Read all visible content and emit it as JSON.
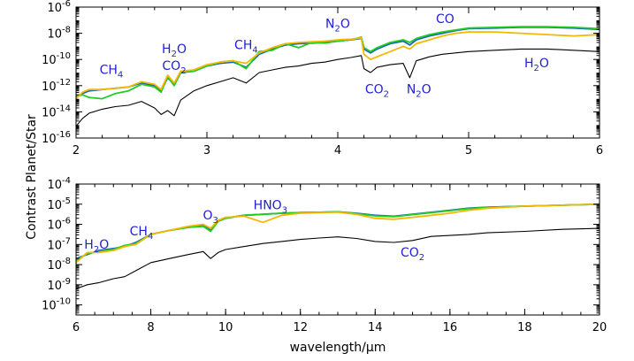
{
  "ylabel": "Contrast  Planet/Star",
  "colors": {
    "star_ref": "#000000",
    "series_a": "#1565c0",
    "series_b": "#22cc22",
    "series_c": "#f5b800",
    "annotation": "#1f1fd6"
  },
  "chart_data": [
    {
      "type": "line",
      "xlabel": "",
      "xlim": [
        2,
        6
      ],
      "xticks": [
        2,
        3,
        4,
        5,
        6
      ],
      "xtick_labels": [
        "2",
        "3",
        "4",
        "5",
        "6"
      ],
      "yscale": "log",
      "ylim_exp": [
        -16,
        -6
      ],
      "ytick_exps": [
        -16,
        -14,
        -12,
        -10,
        -8,
        -6
      ],
      "ytick_labels": [
        "10^-16",
        "10^-14",
        "10^-12",
        "10^-10",
        "10^-8",
        "10^-6"
      ],
      "series": [
        {
          "color": "#000000",
          "x": [
            2.0,
            2.05,
            2.1,
            2.2,
            2.3,
            2.4,
            2.5,
            2.6,
            2.65,
            2.7,
            2.75,
            2.8,
            2.9,
            3.0,
            3.1,
            3.2,
            3.3,
            3.4,
            3.5,
            3.6,
            3.7,
            3.8,
            3.9,
            4.0,
            4.1,
            4.18,
            4.2,
            4.25,
            4.3,
            4.4,
            4.5,
            4.55,
            4.6,
            4.7,
            4.8,
            4.9,
            5.0,
            5.2,
            5.4,
            5.6,
            5.8,
            6.0
          ],
          "log_y": [
            -15.1,
            -14.5,
            -14.1,
            -13.8,
            -13.6,
            -13.5,
            -13.2,
            -13.7,
            -14.2,
            -13.9,
            -14.3,
            -13.1,
            -12.4,
            -12.0,
            -11.7,
            -11.4,
            -11.8,
            -11.0,
            -10.8,
            -10.6,
            -10.5,
            -10.3,
            -10.2,
            -10.0,
            -9.85,
            -9.7,
            -10.7,
            -11.0,
            -10.6,
            -10.4,
            -10.3,
            -11.4,
            -10.1,
            -9.8,
            -9.6,
            -9.5,
            -9.4,
            -9.3,
            -9.2,
            -9.2,
            -9.3,
            -9.4
          ]
        },
        {
          "color": "#1565c0",
          "x": [
            2.0,
            2.05,
            2.1,
            2.2,
            2.3,
            2.4,
            2.5,
            2.6,
            2.65,
            2.7,
            2.75,
            2.8,
            2.9,
            3.0,
            3.1,
            3.2,
            3.3,
            3.4,
            3.5,
            3.6,
            3.7,
            3.8,
            3.9,
            4.0,
            4.1,
            4.18,
            4.2,
            4.25,
            4.3,
            4.4,
            4.5,
            4.55,
            4.6,
            4.7,
            4.8,
            4.9,
            5.0,
            5.2,
            5.4,
            5.6,
            5.8,
            6.0
          ],
          "log_y": [
            -12.9,
            -12.6,
            -12.4,
            -12.3,
            -12.2,
            -12.1,
            -11.8,
            -12.0,
            -12.4,
            -11.4,
            -11.9,
            -11.0,
            -10.9,
            -10.5,
            -10.3,
            -10.2,
            -10.6,
            -9.6,
            -9.2,
            -8.9,
            -8.8,
            -8.75,
            -8.7,
            -8.6,
            -8.5,
            -8.4,
            -9.2,
            -9.5,
            -9.2,
            -8.8,
            -8.6,
            -8.9,
            -8.5,
            -8.2,
            -8.0,
            -7.8,
            -7.65,
            -7.6,
            -7.55,
            -7.55,
            -7.6,
            -7.7
          ]
        },
        {
          "color": "#22cc22",
          "x": [
            2.0,
            2.05,
            2.1,
            2.2,
            2.3,
            2.4,
            2.5,
            2.6,
            2.65,
            2.7,
            2.75,
            2.8,
            2.9,
            3.0,
            3.1,
            3.2,
            3.3,
            3.4,
            3.5,
            3.6,
            3.7,
            3.8,
            3.9,
            4.0,
            4.1,
            4.18,
            4.2,
            4.25,
            4.3,
            4.4,
            4.5,
            4.55,
            4.6,
            4.7,
            4.8,
            4.9,
            5.0,
            5.2,
            5.4,
            5.6,
            5.8,
            6.0
          ],
          "log_y": [
            -12.8,
            -12.7,
            -12.9,
            -13.0,
            -12.6,
            -12.4,
            -11.9,
            -12.1,
            -12.5,
            -11.3,
            -12.0,
            -11.0,
            -10.9,
            -10.5,
            -10.2,
            -10.1,
            -10.7,
            -9.4,
            -9.3,
            -8.8,
            -9.1,
            -8.7,
            -8.75,
            -8.6,
            -8.5,
            -8.3,
            -9.1,
            -9.4,
            -9.1,
            -8.7,
            -8.5,
            -8.7,
            -8.4,
            -8.1,
            -7.9,
            -7.75,
            -7.6,
            -7.55,
            -7.5,
            -7.5,
            -7.55,
            -7.65
          ]
        },
        {
          "color": "#f5b800",
          "x": [
            2.0,
            2.05,
            2.1,
            2.2,
            2.3,
            2.4,
            2.5,
            2.6,
            2.65,
            2.7,
            2.75,
            2.8,
            2.9,
            3.0,
            3.1,
            3.2,
            3.3,
            3.4,
            3.5,
            3.6,
            3.7,
            3.8,
            3.9,
            4.0,
            4.1,
            4.18,
            4.2,
            4.25,
            4.3,
            4.4,
            4.5,
            4.55,
            4.6,
            4.7,
            4.8,
            4.9,
            5.0,
            5.2,
            5.4,
            5.6,
            5.8,
            6.0
          ],
          "log_y": [
            -13.0,
            -12.5,
            -12.3,
            -12.3,
            -12.2,
            -12.1,
            -11.7,
            -11.9,
            -12.3,
            -11.2,
            -11.8,
            -10.9,
            -10.8,
            -10.4,
            -10.2,
            -10.1,
            -10.3,
            -9.5,
            -9.1,
            -8.8,
            -8.7,
            -8.65,
            -8.6,
            -8.5,
            -8.45,
            -8.35,
            -9.6,
            -10.0,
            -9.8,
            -9.4,
            -9.0,
            -9.2,
            -8.8,
            -8.5,
            -8.2,
            -8.0,
            -7.9,
            -7.9,
            -8.0,
            -8.1,
            -8.2,
            -8.1
          ]
        }
      ],
      "annotations": [
        {
          "base": "CH",
          "sub": "4",
          "x": 2.27,
          "log_y": -11.1
        },
        {
          "base": "H",
          "sub": "2",
          "tail": "O",
          "x": 2.75,
          "log_y": -9.5
        },
        {
          "base": "CO",
          "sub": "2",
          "x": 2.75,
          "log_y": -10.8
        },
        {
          "base": "CH",
          "sub": "4",
          "x": 3.3,
          "log_y": -9.2
        },
        {
          "base": "N",
          "sub": "2",
          "tail": "O",
          "x": 4.0,
          "log_y": -7.6
        },
        {
          "base": "CO",
          "sub": "",
          "x": 4.82,
          "log_y": -7.2
        },
        {
          "base": "CO",
          "sub": "2",
          "x": 4.3,
          "log_y": -12.6
        },
        {
          "base": "N",
          "sub": "2",
          "tail": "O",
          "x": 4.62,
          "log_y": -12.6
        },
        {
          "base": "H",
          "sub": "2",
          "tail": "O",
          "x": 5.52,
          "log_y": -10.6
        }
      ]
    },
    {
      "type": "line",
      "xlabel": "wavelength/μm",
      "xlim": [
        6,
        20
      ],
      "xticks": [
        6,
        8,
        10,
        12,
        14,
        16,
        18,
        20
      ],
      "xtick_labels": [
        "6",
        "8",
        "10",
        "12",
        "14",
        "16",
        "18",
        "20"
      ],
      "yscale": "log",
      "ylim_exp": [
        -10.5,
        -4
      ],
      "ytick_exps": [
        -10,
        -9,
        -8,
        -7,
        -6,
        -5,
        -4
      ],
      "ytick_labels": [
        "10^-10",
        "10^-9",
        "10^-8",
        "10^-7",
        "10^-6",
        "10^-5",
        "10^-4"
      ],
      "series": [
        {
          "color": "#000000",
          "x": [
            6.0,
            6.3,
            6.6,
            7.0,
            7.3,
            7.6,
            8.0,
            8.5,
            9.0,
            9.4,
            9.6,
            9.8,
            10.0,
            10.5,
            11.0,
            11.5,
            12.0,
            12.5,
            13.0,
            13.5,
            14.0,
            14.5,
            15.0,
            15.5,
            16.0,
            16.5,
            17.0,
            18.0,
            19.0,
            20.0
          ],
          "log_y": [
            -9.2,
            -9.0,
            -8.9,
            -8.7,
            -8.6,
            -8.3,
            -7.9,
            -7.7,
            -7.5,
            -7.35,
            -7.7,
            -7.4,
            -7.25,
            -7.1,
            -6.95,
            -6.85,
            -6.75,
            -6.68,
            -6.62,
            -6.7,
            -6.85,
            -6.9,
            -6.8,
            -6.6,
            -6.55,
            -6.5,
            -6.42,
            -6.35,
            -6.25,
            -6.2
          ]
        },
        {
          "color": "#1565c0",
          "x": [
            6.0,
            6.3,
            6.6,
            7.0,
            7.3,
            7.6,
            8.0,
            8.5,
            9.0,
            9.4,
            9.6,
            9.8,
            10.0,
            10.5,
            11.0,
            11.5,
            12.0,
            12.5,
            13.0,
            13.5,
            14.0,
            14.5,
            15.0,
            15.5,
            16.0,
            16.5,
            17.0,
            18.0,
            19.0,
            20.0
          ],
          "log_y": [
            -7.7,
            -7.5,
            -7.3,
            -7.2,
            -7.1,
            -6.9,
            -6.5,
            -6.3,
            -6.15,
            -6.05,
            -6.3,
            -5.85,
            -5.7,
            -5.55,
            -5.5,
            -5.45,
            -5.42,
            -5.4,
            -5.38,
            -5.45,
            -5.55,
            -5.6,
            -5.5,
            -5.4,
            -5.3,
            -5.2,
            -5.15,
            -5.1,
            -5.05,
            -5.0
          ]
        },
        {
          "color": "#22cc22",
          "x": [
            6.0,
            6.3,
            6.6,
            7.0,
            7.3,
            7.6,
            8.0,
            8.5,
            9.0,
            9.4,
            9.6,
            9.8,
            10.0,
            10.5,
            11.0,
            11.5,
            12.0,
            12.5,
            13.0,
            13.5,
            14.0,
            14.5,
            15.0,
            15.5,
            16.0,
            16.5,
            17.0,
            18.0,
            19.0,
            20.0
          ],
          "log_y": [
            -7.8,
            -7.45,
            -7.35,
            -7.25,
            -7.05,
            -6.95,
            -6.5,
            -6.3,
            -6.15,
            -6.1,
            -6.35,
            -5.85,
            -5.7,
            -5.55,
            -5.5,
            -5.45,
            -5.42,
            -5.4,
            -5.38,
            -5.47,
            -5.58,
            -5.62,
            -5.52,
            -5.42,
            -5.32,
            -5.22,
            -5.16,
            -5.1,
            -5.05,
            -5.0
          ]
        },
        {
          "color": "#f5b800",
          "x": [
            6.0,
            6.3,
            6.6,
            7.0,
            7.3,
            7.6,
            8.0,
            8.5,
            9.0,
            9.4,
            9.6,
            9.8,
            10.0,
            10.5,
            11.0,
            11.5,
            12.0,
            12.5,
            13.0,
            13.5,
            14.0,
            14.5,
            15.0,
            15.5,
            16.0,
            16.5,
            17.0,
            18.0,
            19.0,
            20.0
          ],
          "log_y": [
            -7.9,
            -7.4,
            -7.4,
            -7.3,
            -7.1,
            -7.0,
            -6.5,
            -6.3,
            -6.1,
            -6.0,
            -6.2,
            -5.8,
            -5.65,
            -5.6,
            -5.9,
            -5.55,
            -5.45,
            -5.42,
            -5.4,
            -5.5,
            -5.7,
            -5.75,
            -5.65,
            -5.55,
            -5.45,
            -5.3,
            -5.2,
            -5.1,
            -5.05,
            -5.0
          ]
        }
      ],
      "annotations": [
        {
          "base": "H",
          "sub": "2",
          "tail": "O",
          "x": 6.55,
          "log_y": -7.2
        },
        {
          "base": "CH",
          "sub": "4",
          "x": 7.75,
          "log_y": -6.55
        },
        {
          "base": "O",
          "sub": "3",
          "x": 9.6,
          "log_y": -5.75
        },
        {
          "base": "HNO",
          "sub": "3",
          "x": 11.2,
          "log_y": -5.25
        },
        {
          "base": "CO",
          "sub": "2",
          "x": 15.0,
          "log_y": -7.6
        }
      ]
    }
  ]
}
